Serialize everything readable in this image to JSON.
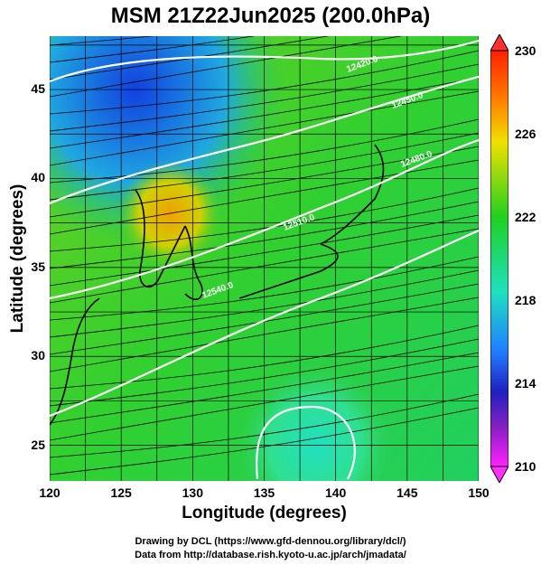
{
  "title": "MSM 21Z22Jun2025 (200.0hPa)",
  "xlabel": "Longitude (degrees)",
  "ylabel": "Latitude  (degrees)",
  "x_ticks": [
    "120",
    "125",
    "130",
    "135",
    "140",
    "145",
    "150"
  ],
  "y_ticks": [
    "45",
    "40",
    "35",
    "30",
    "25"
  ],
  "colorbar_ticks": [
    "230",
    "226",
    "222",
    "218",
    "214",
    "210"
  ],
  "credits": {
    "line1": "Drawing by DCL (https://www.gfd-dennou.org/library/dcl/)",
    "line2": "Data from http://database.rish.kyoto-u.ac.jp/arch/jmadata/"
  },
  "contour_labels": [
    "12420.0",
    "12450.0",
    "12480.0",
    "12510.0",
    "12540.0"
  ],
  "chart_data": {
    "type": "heatmap",
    "x_range": [
      120,
      150
    ],
    "y_range": [
      23,
      48
    ],
    "color_range": [
      210,
      230
    ],
    "colors": {
      "low": "#ff00ff",
      "mid": "#00e000",
      "high": "#ff4000"
    }
  }
}
